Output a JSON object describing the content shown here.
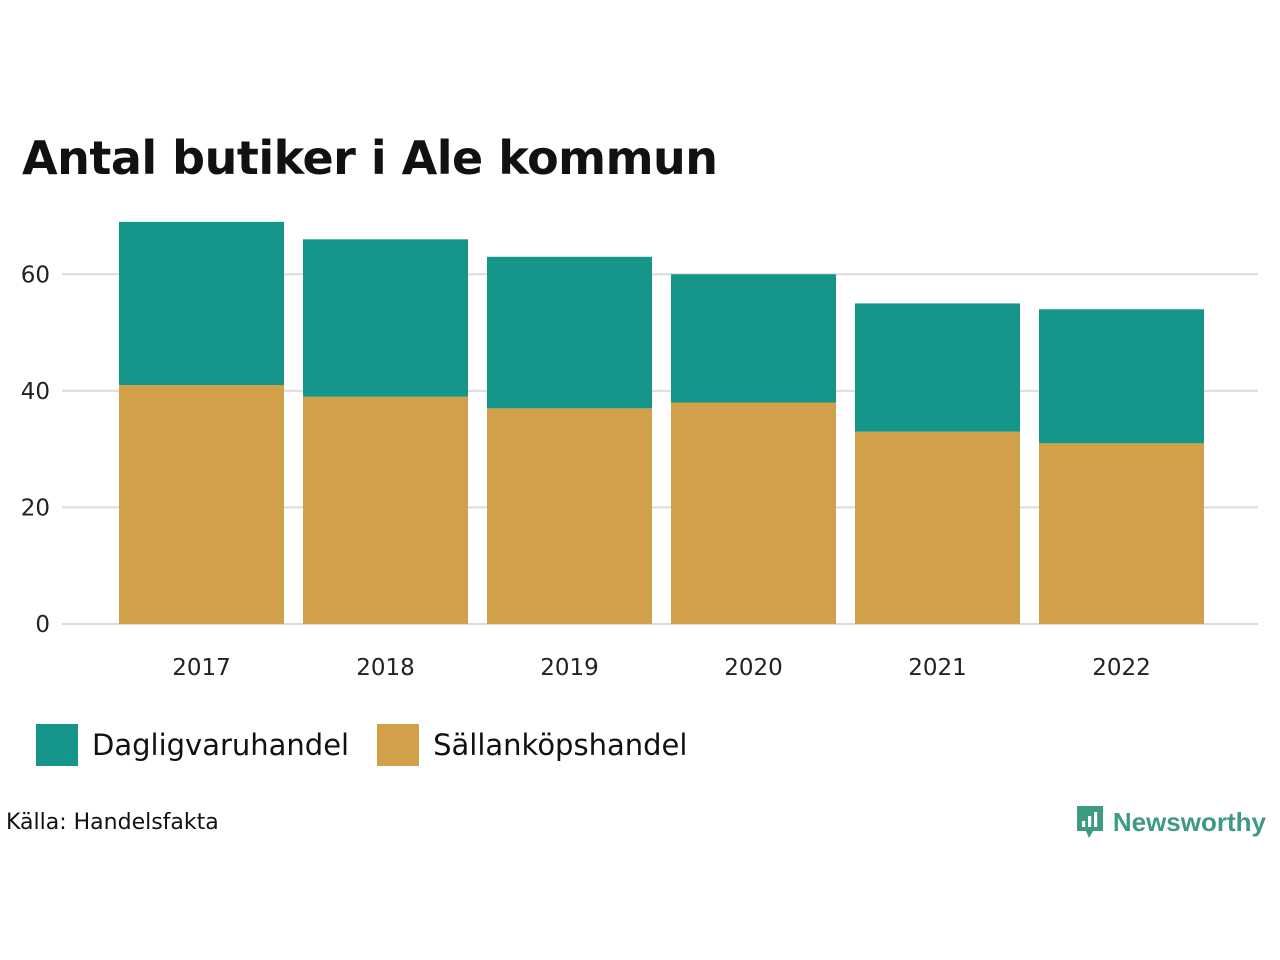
{
  "chart_data": {
    "type": "bar",
    "stacked": true,
    "title": "Antal butiker i Ale kommun",
    "categories": [
      "2017",
      "2018",
      "2019",
      "2020",
      "2021",
      "2022"
    ],
    "series": [
      {
        "name": "Sällanköpshandel",
        "color": "#d1a048",
        "values": [
          41,
          39,
          37,
          38,
          33,
          31
        ]
      },
      {
        "name": "Dagligvaruhandel",
        "color": "#16968a",
        "values": [
          28,
          27,
          26,
          22,
          22,
          23
        ]
      }
    ],
    "yticks": [
      0,
      20,
      40,
      60
    ],
    "ylim": [
      0,
      70
    ],
    "xlabel": "",
    "ylabel": "",
    "grid": true,
    "legend_position": "bottom-left"
  },
  "legend": [
    {
      "label": "Dagligvaruhandel",
      "color": "#16968a"
    },
    {
      "label": "Sällanköpshandel",
      "color": "#d1a048"
    }
  ],
  "source": "Källa: Handelsfakta",
  "brand": {
    "name": "Newsworthy",
    "color": "#3f9a82"
  }
}
